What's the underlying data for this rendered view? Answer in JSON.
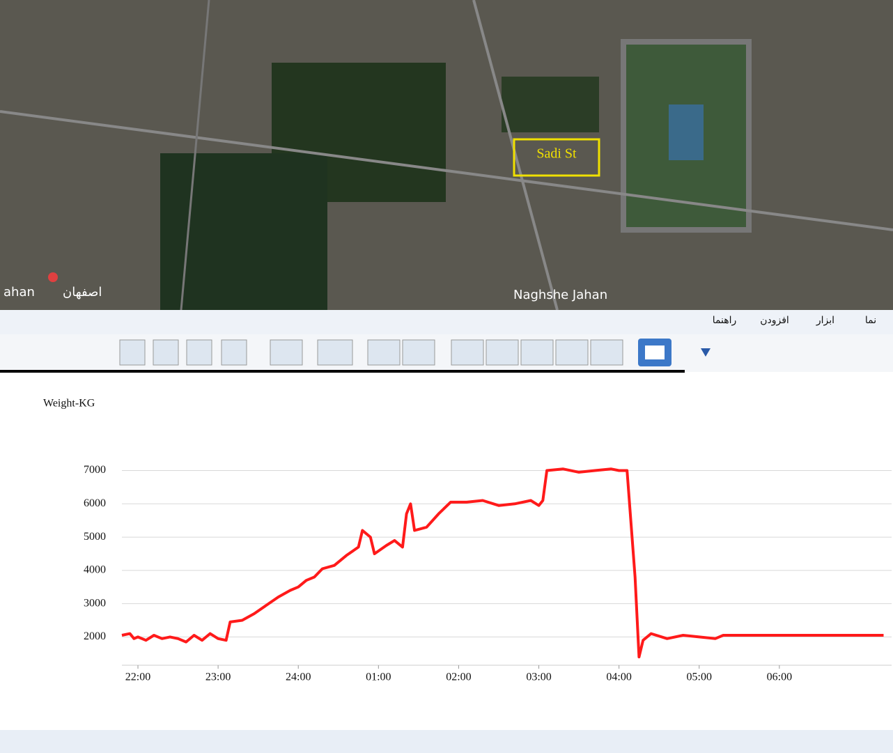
{
  "map": {
    "labels": [
      "Sadi St",
      "Naghshe Jahan",
      "ahan",
      "اصفهان"
    ]
  },
  "menu": [
    "نما",
    "ابزار",
    "افزودن",
    "راهنما"
  ],
  "chart_data": {
    "type": "line",
    "y_label": "Weight-KG",
    "xlim": [
      -0.2,
      9.4
    ],
    "xticks": [
      {
        "value": 0,
        "label": "22:00"
      },
      {
        "value": 1,
        "label": "23:00"
      },
      {
        "value": 2,
        "label": "24:00"
      },
      {
        "value": 3,
        "label": "01:00"
      },
      {
        "value": 4,
        "label": "02:00"
      },
      {
        "value": 5,
        "label": "03:00"
      },
      {
        "value": 6,
        "label": "04:00"
      },
      {
        "value": 7,
        "label": "05:00"
      },
      {
        "value": 8,
        "label": "06:00"
      }
    ],
    "ylim": [
      1150,
      9000
    ],
    "yticks": [
      2000,
      3000,
      4000,
      5000,
      6000,
      7000
    ],
    "grid": true,
    "series": [
      {
        "color": "#ff1a1a",
        "x": [
          -0.2,
          -0.1,
          -0.05,
          0,
          0.1,
          0.2,
          0.3,
          0.4,
          0.5,
          0.6,
          0.7,
          0.8,
          0.9,
          1.0,
          1.1,
          1.15,
          1.3,
          1.45,
          1.6,
          1.75,
          1.9,
          2.0,
          2.1,
          2.2,
          2.3,
          2.45,
          2.6,
          2.75,
          2.8,
          2.9,
          2.95,
          3.1,
          3.2,
          3.3,
          3.35,
          3.4,
          3.45,
          3.6,
          3.75,
          3.9,
          4.1,
          4.3,
          4.5,
          4.7,
          4.9,
          5.0,
          5.05,
          5.1,
          5.3,
          5.5,
          5.7,
          5.9,
          6.0,
          6.1,
          6.2,
          6.25,
          6.3,
          6.4,
          6.6,
          6.8,
          7.0,
          7.2,
          7.3,
          7.6,
          9.3
        ],
        "values": [
          2050,
          2100,
          1950,
          2000,
          1900,
          2050,
          1950,
          2000,
          1950,
          1850,
          2050,
          1900,
          2100,
          1950,
          1900,
          2450,
          2500,
          2700,
          2950,
          3200,
          3400,
          3500,
          3700,
          3800,
          4050,
          4150,
          4450,
          4700,
          5200,
          5000,
          4500,
          4750,
          4900,
          4700,
          5700,
          6000,
          5200,
          5300,
          5700,
          6050,
          6050,
          6100,
          5950,
          6000,
          6100,
          5950,
          6100,
          7000,
          7050,
          6950,
          7000,
          7050,
          7000,
          7000,
          3800,
          1400,
          1900,
          2100,
          1950,
          2050,
          2000,
          1950,
          2050,
          2050,
          2050
        ]
      }
    ]
  }
}
